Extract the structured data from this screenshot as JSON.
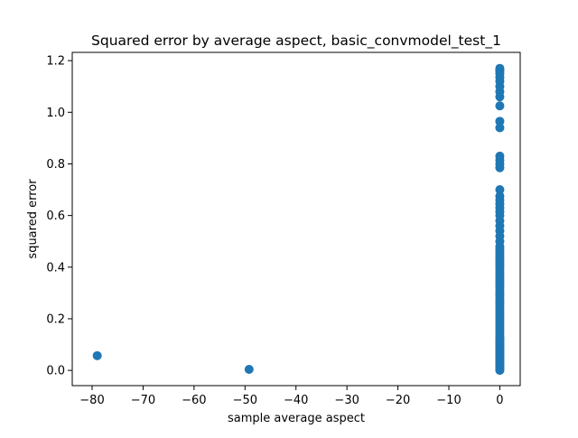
{
  "chart_data": {
    "type": "scatter",
    "title": "Squared error by average aspect, basic_convmodel_test_1",
    "xlabel": "sample average aspect",
    "ylabel": "squared error",
    "xlim": [
      -83.9,
      4.0
    ],
    "ylim": [
      -0.059,
      1.232
    ],
    "xticks": [
      -80,
      -70,
      -60,
      -50,
      -40,
      -30,
      -20,
      -10,
      0
    ],
    "xtick_labels": [
      "−80",
      "−70",
      "−60",
      "−50",
      "−40",
      "−30",
      "−20",
      "−10",
      "0"
    ],
    "yticks": [
      0.0,
      0.2,
      0.4,
      0.6,
      0.8,
      1.0,
      1.2
    ],
    "ytick_labels": [
      "0.0",
      "0.2",
      "0.4",
      "0.6",
      "0.8",
      "1.0",
      "1.2"
    ],
    "grid": false,
    "marker_color": "#1f77b4",
    "series": [
      {
        "x": [
          -79,
          -49.2,
          0,
          0,
          0,
          0,
          0,
          0,
          0,
          0,
          0,
          0,
          0,
          0,
          0,
          0,
          0,
          0,
          0,
          0,
          0,
          0,
          0,
          0,
          0,
          0,
          0,
          0,
          0,
          0,
          0,
          0,
          0,
          0,
          0,
          0,
          0,
          0,
          0,
          0,
          0,
          0,
          0,
          0,
          0,
          0,
          0,
          0,
          0,
          0,
          0,
          0,
          0,
          0,
          0,
          0,
          0,
          0,
          0,
          0,
          0,
          0,
          0,
          0,
          0,
          0,
          0,
          0,
          0,
          0,
          0,
          0,
          0,
          0,
          0,
          0,
          0,
          0,
          0,
          0,
          0,
          0,
          0,
          0,
          0,
          0,
          0,
          0,
          0,
          0,
          0,
          0
        ],
        "y": [
          0.057,
          0.004,
          0.0,
          0.005,
          0.01,
          0.015,
          0.02,
          0.03,
          0.04,
          0.05,
          0.06,
          0.07,
          0.08,
          0.09,
          0.1,
          0.11,
          0.12,
          0.13,
          0.14,
          0.15,
          0.16,
          0.17,
          0.18,
          0.19,
          0.2,
          0.21,
          0.22,
          0.23,
          0.24,
          0.25,
          0.26,
          0.27,
          0.28,
          0.29,
          0.3,
          0.31,
          0.32,
          0.33,
          0.34,
          0.35,
          0.36,
          0.37,
          0.38,
          0.39,
          0.4,
          0.41,
          0.42,
          0.43,
          0.44,
          0.45,
          0.46,
          0.47,
          0.48,
          0.5,
          0.52,
          0.54,
          0.56,
          0.58,
          0.6,
          0.615,
          0.63,
          0.645,
          0.66,
          0.675,
          0.7,
          0.785,
          0.8,
          0.815,
          0.83,
          0.94,
          0.965,
          1.025,
          1.06,
          1.08,
          1.1,
          1.12,
          1.135,
          1.15,
          1.16,
          1.165,
          1.17,
          0.025,
          0.035,
          0.045,
          0.055,
          0.065,
          0.075,
          0.085,
          0.095,
          0.105,
          0.115,
          0.125
        ]
      }
    ]
  }
}
